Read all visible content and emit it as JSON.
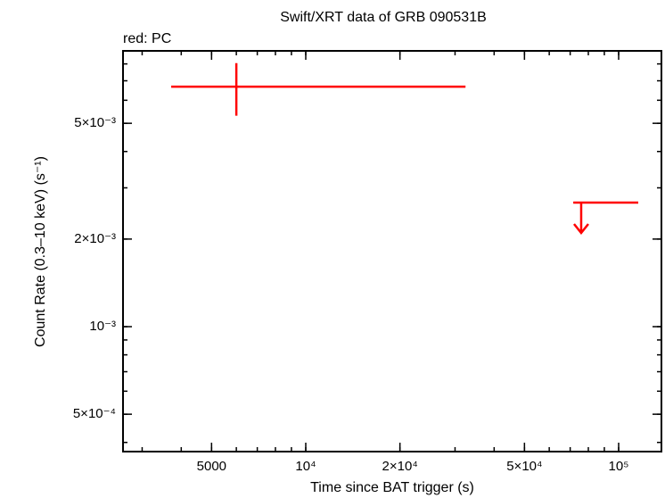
{
  "chart_data": {
    "type": "scatter",
    "title": "Swift/XRT data of GRB 090531B",
    "annotation": "red: PC",
    "x_label": "Time since BAT trigger (s)",
    "y_label": "Count Rate (0.3–10 keV) (s⁻¹)",
    "xscale": "log",
    "yscale": "log",
    "xlim": [
      2606,
      137000
    ],
    "ylim": [
      0.000372,
      0.00887
    ],
    "xticks": [
      {
        "value": 5000,
        "label": "5000"
      },
      {
        "value": 10000,
        "label": "10⁴"
      },
      {
        "value": 20000,
        "label": "2×10⁴"
      },
      {
        "value": 50000,
        "label": "5×10⁴"
      },
      {
        "value": 100000,
        "label": "10⁵"
      }
    ],
    "yticks": [
      {
        "value": 0.0005,
        "label": "5×10⁻⁴"
      },
      {
        "value": 0.001,
        "label": "10⁻³"
      },
      {
        "value": 0.002,
        "label": "2×10⁻³"
      },
      {
        "value": 0.005,
        "label": "5×10⁻³"
      }
    ],
    "color": "#ff0000",
    "points": [
      {
        "x": 6000,
        "x_low": 3715,
        "x_high": 32400,
        "y": 0.00668,
        "y_err": 0.00137
      }
    ],
    "upper_limits": [
      {
        "x": 75900,
        "x_low": 71600,
        "x_high": 115500,
        "y": 0.00267
      }
    ]
  }
}
